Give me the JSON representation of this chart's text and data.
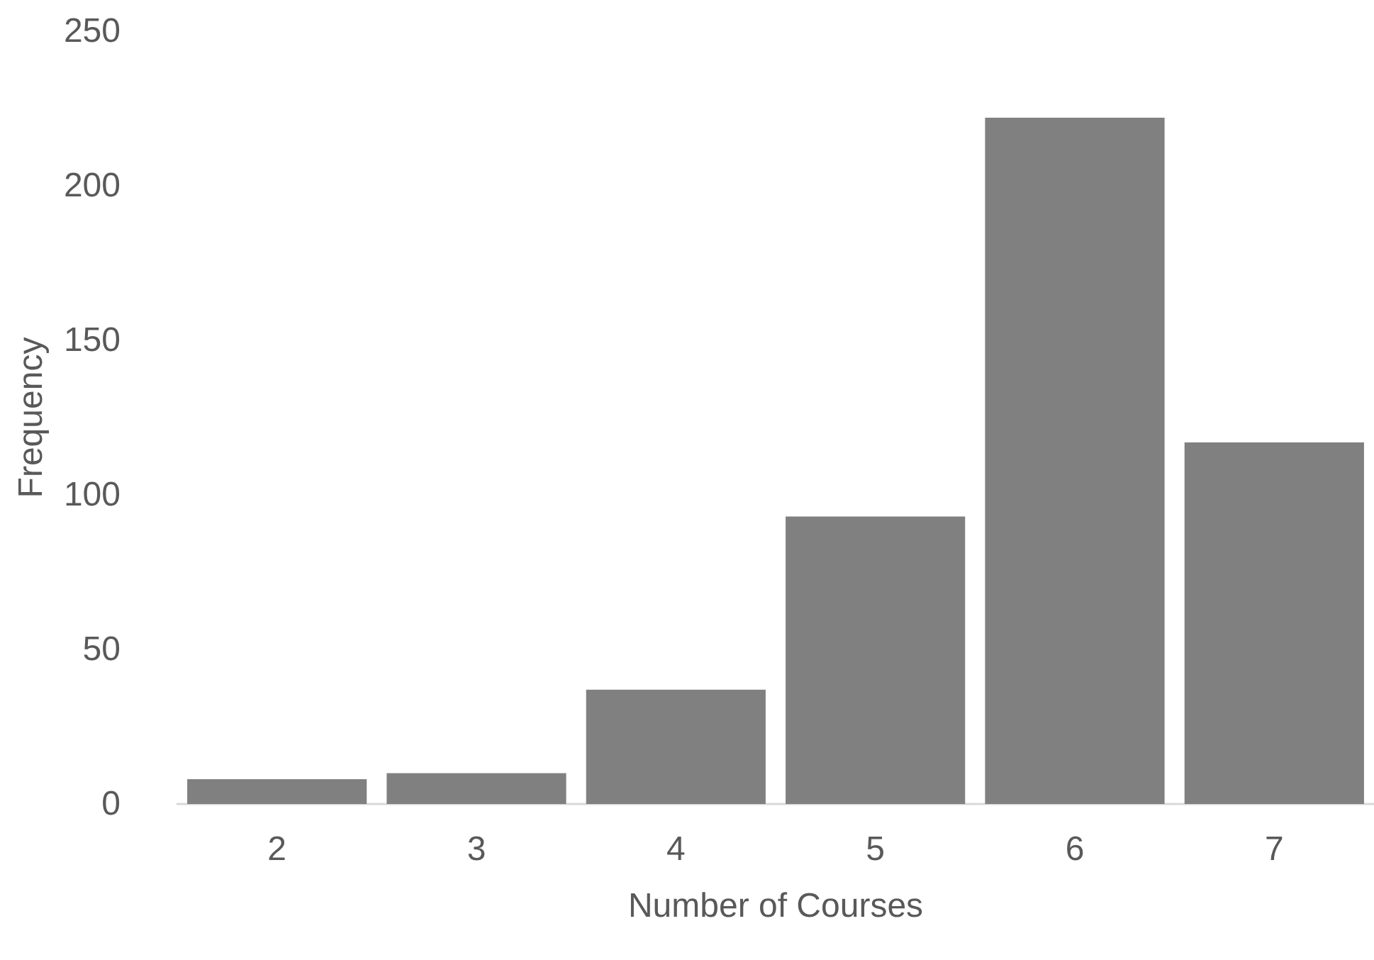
{
  "chart_data": {
    "type": "bar",
    "xlabel": "Number of Courses",
    "ylabel": "Frequency",
    "categories": [
      "2",
      "3",
      "4",
      "5",
      "6",
      "7"
    ],
    "values": [
      8,
      10,
      37,
      93,
      222,
      117
    ],
    "color": "#808080",
    "ylim": [
      0,
      250
    ],
    "yticks": [
      0,
      50,
      100,
      150,
      200,
      250
    ],
    "grid": false
  }
}
